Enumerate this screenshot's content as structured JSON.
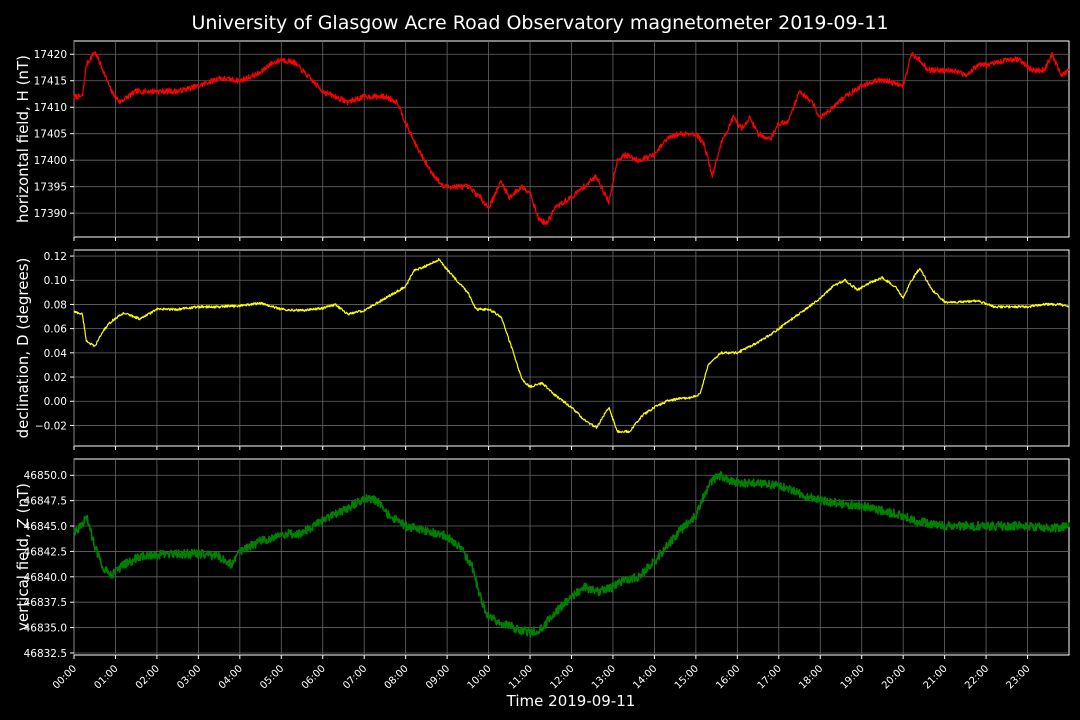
{
  "chart_data": {
    "type": "line",
    "title": "University of Glasgow Acre Road Observatory magnetometer 2019-09-11",
    "xlabel": "Time 2019-09-11",
    "x_tick_labels": [
      "00:00",
      "01:00",
      "02:00",
      "03:00",
      "04:00",
      "05:00",
      "06:00",
      "07:00",
      "08:00",
      "09:00",
      "10:00",
      "11:00",
      "12:00",
      "13:00",
      "14:00",
      "15:00",
      "16:00",
      "17:00",
      "18:00",
      "19:00",
      "20:00",
      "21:00",
      "22:00",
      "23:00"
    ],
    "x_range_hours": [
      0,
      24
    ],
    "grid": true,
    "panels": [
      {
        "name": "H",
        "ylabel": "horizontal field, H (nT)",
        "color": "#ff0000",
        "ylim": [
          17385.5,
          17422.5
        ],
        "yticks": [
          17390,
          17395,
          17400,
          17405,
          17410,
          17415,
          17420
        ],
        "ytick_labels": [
          "17390",
          "17395",
          "17400",
          "17405",
          "17410",
          "17415",
          "17420"
        ],
        "x": [
          0,
          0.2,
          0.3,
          0.5,
          0.7,
          0.9,
          1.1,
          1.5,
          2,
          2.5,
          3,
          3.5,
          4,
          4.5,
          4.7,
          5,
          5.3,
          5.5,
          6,
          6.3,
          6.6,
          7,
          7.5,
          7.8,
          8,
          8.3,
          8.6,
          8.9,
          9.2,
          9.5,
          9.8,
          10,
          10.3,
          10.5,
          10.8,
          11,
          11.2,
          11.4,
          11.6,
          11.8,
          12,
          12.3,
          12.6,
          12.9,
          13.1,
          13.3,
          13.6,
          14,
          14.3,
          14.6,
          15,
          15.2,
          15.4,
          15.6,
          15.9,
          16.1,
          16.3,
          16.5,
          16.8,
          17,
          17.2,
          17.5,
          17.8,
          18,
          18.3,
          18.6,
          19,
          19.3,
          19.6,
          20,
          20.2,
          20.4,
          20.6,
          20.9,
          21.2,
          21.5,
          21.8,
          22.1,
          22.5,
          22.8,
          23.1,
          23.4,
          23.6,
          23.8,
          24
        ],
        "values": [
          17412,
          17412,
          17418,
          17420.5,
          17417,
          17413,
          17411,
          17413,
          17413,
          17413,
          17414,
          17415.5,
          17415,
          17416.5,
          17418,
          17419,
          17418.5,
          17417,
          17413,
          17412,
          17411,
          17412,
          17412,
          17411,
          17407,
          17402,
          17398,
          17395,
          17395,
          17395,
          17393,
          17391,
          17396,
          17393,
          17395,
          17394,
          17389,
          17388,
          17391,
          17392,
          17393,
          17395,
          17397,
          17392,
          17400,
          17401,
          17400,
          17401,
          17404,
          17405,
          17405,
          17403,
          17397,
          17403,
          17408,
          17406,
          17408,
          17405,
          17404,
          17407,
          17407,
          17413,
          17411,
          17408,
          17410,
          17412,
          17414,
          17415,
          17415,
          17414,
          17420,
          17419,
          17417,
          17417,
          17417,
          17416,
          17418,
          17418,
          17419,
          17419,
          17417,
          17417,
          17420,
          17416,
          17417
        ]
      },
      {
        "name": "D",
        "ylabel": "declination, D (degrees)",
        "color": "#ffff00",
        "ylim": [
          -0.037,
          0.125
        ],
        "yticks": [
          -0.02,
          0.0,
          0.02,
          0.04,
          0.06,
          0.08,
          0.1,
          0.12
        ],
        "ytick_labels": [
          "−0.02",
          "0.00",
          "0.02",
          "0.04",
          "0.06",
          "0.08",
          "0.10",
          "0.12"
        ],
        "x": [
          0,
          0.2,
          0.3,
          0.5,
          0.7,
          0.9,
          1.2,
          1.6,
          2,
          2.5,
          3,
          3.5,
          4,
          4.5,
          5,
          5.5,
          6,
          6.3,
          6.6,
          7,
          7.5,
          8,
          8.2,
          8.5,
          8.8,
          9.1,
          9.5,
          9.7,
          10,
          10.3,
          10.6,
          10.8,
          11,
          11.3,
          11.6,
          12,
          12.3,
          12.6,
          12.9,
          13.1,
          13.4,
          13.7,
          14,
          14.3,
          14.6,
          14.9,
          15.1,
          15.3,
          15.6,
          16,
          16.4,
          16.8,
          17.2,
          17.6,
          18,
          18.3,
          18.6,
          18.9,
          19.2,
          19.5,
          19.8,
          20,
          20.2,
          20.4,
          20.7,
          21,
          21.4,
          21.8,
          22.2,
          22.6,
          23,
          23.4,
          23.8,
          24
        ],
        "values": [
          0.074,
          0.072,
          0.05,
          0.045,
          0.058,
          0.066,
          0.073,
          0.068,
          0.076,
          0.076,
          0.078,
          0.078,
          0.079,
          0.081,
          0.076,
          0.075,
          0.077,
          0.08,
          0.072,
          0.075,
          0.085,
          0.095,
          0.108,
          0.112,
          0.117,
          0.105,
          0.09,
          0.076,
          0.076,
          0.07,
          0.04,
          0.018,
          0.012,
          0.015,
          0.005,
          -0.005,
          -0.015,
          -0.022,
          -0.005,
          -0.025,
          -0.025,
          -0.012,
          -0.005,
          0,
          0.002,
          0.003,
          0.006,
          0.03,
          0.04,
          0.04,
          0.047,
          0.055,
          0.065,
          0.075,
          0.085,
          0.095,
          0.1,
          0.092,
          0.098,
          0.102,
          0.095,
          0.085,
          0.1,
          0.11,
          0.092,
          0.082,
          0.082,
          0.083,
          0.078,
          0.078,
          0.078,
          0.08,
          0.08,
          0.078
        ]
      },
      {
        "name": "Z",
        "ylabel": "vertical field, Z (nT)",
        "color": "#008000",
        "ylim": [
          46832.3,
          46851.6
        ],
        "yticks": [
          46832.5,
          46835.0,
          46837.5,
          46840.0,
          46842.5,
          46845.0,
          46847.5,
          46850.0
        ],
        "ytick_labels": [
          "46832.5",
          "46835.0",
          "46837.5",
          "46840.0",
          "46842.5",
          "46845.0",
          "46847.5",
          "46850.0"
        ],
        "x": [
          0,
          0.2,
          0.3,
          0.5,
          0.7,
          0.9,
          1.2,
          1.6,
          2,
          2.5,
          3,
          3.5,
          3.8,
          4,
          4.5,
          5,
          5.5,
          6,
          6.5,
          7,
          7.3,
          7.6,
          8,
          8.5,
          9,
          9.3,
          9.6,
          9.8,
          10,
          10.3,
          10.6,
          11,
          11.3,
          11.6,
          12,
          12.3,
          12.6,
          13,
          13.3,
          13.6,
          14,
          14.3,
          14.6,
          15,
          15.2,
          15.4,
          15.6,
          15.8,
          16,
          16.5,
          17,
          17.3,
          17.6,
          18,
          18.5,
          19,
          19.5,
          20,
          20.3,
          20.6,
          21,
          21.5,
          22,
          22.5,
          23,
          23.5,
          24
        ],
        "values": [
          46844.5,
          46845,
          46846,
          46843,
          46841,
          46840.2,
          46841.2,
          46842,
          46842.2,
          46842.2,
          46842.3,
          46842,
          46841.2,
          46842.5,
          46843.5,
          46844.2,
          46844.3,
          46845.5,
          46846.5,
          46847.7,
          46847.5,
          46846,
          46845,
          46844.5,
          46844,
          46843,
          46841,
          46838,
          46836,
          46835.5,
          46835,
          46834.5,
          46835,
          46836.5,
          46838,
          46839,
          46838.5,
          46839,
          46839.7,
          46840,
          46841.5,
          46843,
          46844.5,
          46846,
          46848,
          46849.5,
          46850,
          46849.5,
          46849.3,
          46849.2,
          46849,
          46848.5,
          46848,
          46847.5,
          46847.2,
          46847,
          46846.5,
          46846,
          46845.5,
          46845.3,
          46845,
          46845,
          46845,
          46845,
          46845,
          46844.8,
          46845
        ]
      }
    ]
  }
}
